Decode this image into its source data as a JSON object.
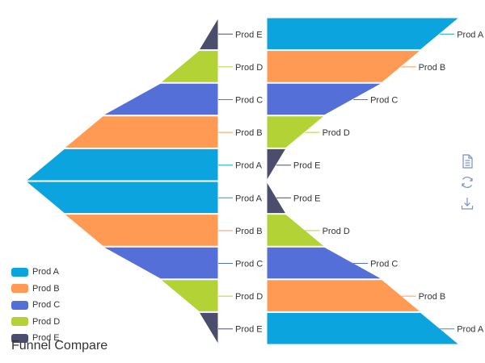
{
  "chart_data": {
    "type": "funnel",
    "title": "Funnel Compare",
    "categories": [
      "Prod A",
      "Prod B",
      "Prod C",
      "Prod D",
      "Prod E"
    ],
    "colors": {
      "Prod A": "#0ba4df",
      "Prod B": "#fe9a53",
      "Prod C": "#5470d8",
      "Prod D": "#b2d235",
      "Prod E": "#4a4e6c"
    },
    "funnels": [
      {
        "position": "upper-left",
        "direction": "expand-downward",
        "align": "right",
        "values": {
          "Prod A": 100,
          "Prod B": 80,
          "Prod C": 60,
          "Prod D": 30,
          "Prod E": 10
        }
      },
      {
        "position": "upper-right",
        "direction": "narrow-downward",
        "align": "left",
        "values": {
          "Prod A": 100,
          "Prod B": 80,
          "Prod C": 60,
          "Prod D": 30,
          "Prod E": 10
        }
      },
      {
        "position": "lower-left",
        "direction": "narrow-downward",
        "align": "right",
        "values": {
          "Prod A": 100,
          "Prod B": 80,
          "Prod C": 60,
          "Prod D": 30,
          "Prod E": 10
        }
      },
      {
        "position": "lower-right",
        "direction": "expand-downward",
        "align": "left",
        "values": {
          "Prod A": 100,
          "Prod B": 80,
          "Prod C": 60,
          "Prod D": 30,
          "Prod E": 10
        }
      }
    ],
    "legend": {
      "position": "bottom-left",
      "orient": "vertical"
    }
  },
  "toolbox": {
    "items": [
      {
        "name": "data-view-icon"
      },
      {
        "name": "restore-icon"
      },
      {
        "name": "save-image-icon"
      }
    ]
  }
}
